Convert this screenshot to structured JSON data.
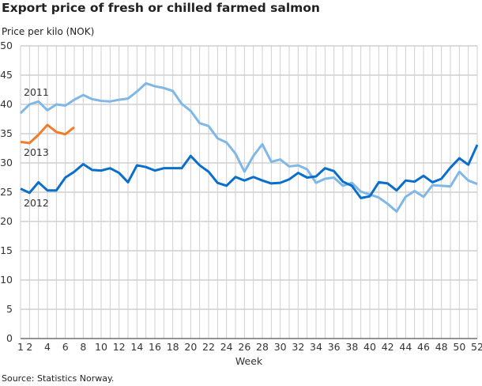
{
  "chart_data": {
    "type": "line",
    "title": "Export price of fresh or chilled farmed salmon",
    "ylabel": "Price per kilo (NOK)",
    "xlabel": "Week",
    "source": "Source: Statistics Norway.",
    "xlim": [
      1,
      52
    ],
    "ylim": [
      0,
      50
    ],
    "yticks": [
      0,
      5,
      10,
      15,
      20,
      25,
      30,
      35,
      40,
      45,
      50
    ],
    "xticks": [
      1,
      2,
      4,
      6,
      8,
      10,
      12,
      14,
      16,
      18,
      20,
      22,
      24,
      26,
      28,
      30,
      32,
      34,
      36,
      38,
      40,
      42,
      44,
      46,
      48,
      50,
      52
    ],
    "grid": true,
    "series": [
      {
        "name": "2011",
        "color": "#7fb8e6",
        "values": [
          38.5,
          40,
          40.5,
          39,
          40,
          39.8,
          40.8,
          41.6,
          40.9,
          40.6,
          40.5,
          40.8,
          41,
          42.2,
          43.6,
          43.1,
          42.8,
          42.3,
          40.1,
          38.9,
          36.8,
          36.3,
          34.2,
          33.5,
          31.6,
          28.5,
          31.2,
          33.2,
          30.2,
          30.6,
          29.4,
          29.6,
          28.9,
          26.6,
          27.3,
          27.5,
          26.1,
          26.6,
          25.1,
          24.6,
          24.1,
          23,
          21.7,
          24.2,
          25.2,
          24.2,
          26.2,
          26.1,
          26,
          28.5,
          27,
          26.4
        ]
      },
      {
        "name": "2012",
        "color": "#0a6fcb",
        "values": [
          25.6,
          24.9,
          26.7,
          25.3,
          25.3,
          27.5,
          28.5,
          29.8,
          28.8,
          28.7,
          29.1,
          28.3,
          26.7,
          29.6,
          29.3,
          28.7,
          29.1,
          29.1,
          29.1,
          31.2,
          29.6,
          28.5,
          26.6,
          26.1,
          27.6,
          27,
          27.6,
          27,
          26.5,
          26.6,
          27.2,
          28.3,
          27.5,
          27.7,
          29.1,
          28.6,
          26.8,
          26.1,
          24,
          24.3,
          26.7,
          26.5,
          25.3,
          27,
          26.8,
          27.8,
          26.7,
          27.3,
          29.2,
          30.8,
          29.7,
          33.1
        ]
      },
      {
        "name": "2013",
        "color": "#f07d2c",
        "values": [
          33.6,
          33.4,
          34.8,
          36.5,
          35.3,
          34.9,
          36.1
        ]
      }
    ]
  }
}
